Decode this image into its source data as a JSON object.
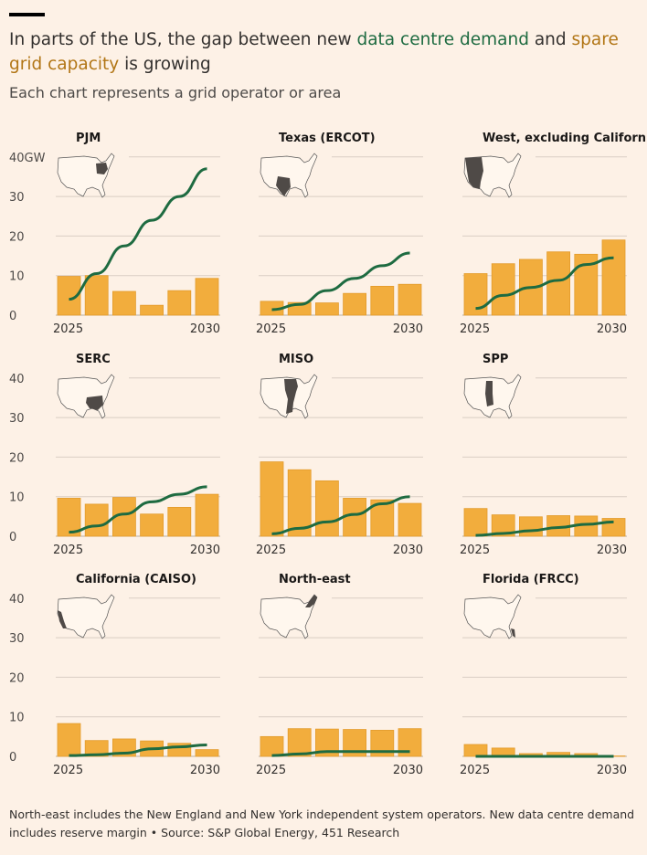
{
  "header": {
    "title_part1": "In parts of the US, the gap between new ",
    "title_demand": "data centre demand",
    "title_part2": " and ",
    "title_capacity": "spare grid capacity",
    "title_part3": " is growing",
    "subtitle": "Each chart represents a grid operator or area"
  },
  "footer": {
    "note": "North-east includes the New England and New York independent system operators. New data centre demand includes reserve margin • Source: S&P Global Energy, 451 Research"
  },
  "colors": {
    "demand": "#1e6b41",
    "capacity": "#f2ad3d",
    "capacity_text": "#b27616",
    "background": "#fdf1e6"
  },
  "chart_data": [
    {
      "type": "bar+line",
      "title": "PJM",
      "unit": "GW",
      "ylim": [
        0,
        40
      ],
      "yticks": [
        0,
        10,
        20,
        30,
        40
      ],
      "top_tick_label": "40GW",
      "x": [
        2025,
        2026,
        2027,
        2028,
        2029,
        2030
      ],
      "x_tick_labels": [
        "2025",
        "2030"
      ],
      "series": [
        {
          "name": "spare grid capacity",
          "kind": "bar",
          "values": [
            9.8,
            10,
            6,
            2.5,
            6.2,
            9.3
          ]
        },
        {
          "name": "data centre demand",
          "kind": "line",
          "values": [
            4,
            10.5,
            17.5,
            24,
            30,
            37
          ]
        }
      ]
    },
    {
      "type": "bar+line",
      "title": "Texas (ERCOT)",
      "unit": "GW",
      "ylim": [
        0,
        40
      ],
      "yticks": [
        0,
        10,
        20,
        30,
        40
      ],
      "x": [
        2025,
        2026,
        2027,
        2028,
        2029,
        2030
      ],
      "x_tick_labels": [
        "2025",
        "2030"
      ],
      "series": [
        {
          "name": "spare grid capacity",
          "kind": "bar",
          "values": [
            3.5,
            3.2,
            3.1,
            5.5,
            7.3,
            7.8
          ]
        },
        {
          "name": "data centre demand",
          "kind": "line",
          "values": [
            1.4,
            2.7,
            6.2,
            9.3,
            12.5,
            15.7
          ]
        }
      ]
    },
    {
      "type": "bar+line",
      "title": "West, excluding California",
      "unit": "GW",
      "ylim": [
        0,
        40
      ],
      "yticks": [
        0,
        10,
        20,
        30,
        40
      ],
      "x": [
        2025,
        2026,
        2027,
        2028,
        2029,
        2030
      ],
      "x_tick_labels": [
        "2025",
        "2030"
      ],
      "series": [
        {
          "name": "spare grid capacity",
          "kind": "bar",
          "values": [
            10.5,
            13,
            14.1,
            16,
            15.4,
            19
          ]
        },
        {
          "name": "data centre demand",
          "kind": "line",
          "values": [
            1.7,
            5,
            7,
            8.8,
            12.8,
            14.5
          ]
        }
      ]
    },
    {
      "type": "bar+line",
      "title": "SERC",
      "unit": "GW",
      "ylim": [
        0,
        40
      ],
      "yticks": [
        0,
        10,
        20,
        30,
        40
      ],
      "top_tick_label": "40",
      "x": [
        2025,
        2026,
        2027,
        2028,
        2029,
        2030
      ],
      "x_tick_labels": [
        "2025",
        "2030"
      ],
      "series": [
        {
          "name": "spare grid capacity",
          "kind": "bar",
          "values": [
            9.6,
            8.1,
            9.8,
            5.6,
            7.3,
            10.6
          ]
        },
        {
          "name": "data centre demand",
          "kind": "line",
          "values": [
            1,
            2.6,
            5.6,
            8.7,
            10.6,
            12.5
          ]
        }
      ]
    },
    {
      "type": "bar+line",
      "title": "MISO",
      "unit": "GW",
      "ylim": [
        0,
        40
      ],
      "yticks": [
        0,
        10,
        20,
        30,
        40
      ],
      "x": [
        2025,
        2026,
        2027,
        2028,
        2029,
        2030
      ],
      "x_tick_labels": [
        "2025",
        "2030"
      ],
      "series": [
        {
          "name": "spare grid capacity",
          "kind": "bar",
          "values": [
            18.8,
            16.8,
            14,
            9.6,
            9.2,
            8.3
          ]
        },
        {
          "name": "data centre demand",
          "kind": "line",
          "values": [
            0.6,
            2,
            3.6,
            5.5,
            8.2,
            10
          ]
        }
      ]
    },
    {
      "type": "bar+line",
      "title": "SPP",
      "unit": "GW",
      "ylim": [
        0,
        40
      ],
      "yticks": [
        0,
        10,
        20,
        30,
        40
      ],
      "x": [
        2025,
        2026,
        2027,
        2028,
        2029,
        2030
      ],
      "x_tick_labels": [
        "2025",
        "2030"
      ],
      "series": [
        {
          "name": "spare grid capacity",
          "kind": "bar",
          "values": [
            7,
            5.4,
            4.9,
            5.2,
            5.1,
            4.5
          ]
        },
        {
          "name": "data centre demand",
          "kind": "line",
          "values": [
            0.2,
            0.7,
            1.4,
            2.2,
            3,
            3.6
          ]
        }
      ]
    },
    {
      "type": "bar+line",
      "title": "California (CAISO)",
      "unit": "GW",
      "ylim": [
        0,
        40
      ],
      "yticks": [
        0,
        10,
        20,
        30,
        40
      ],
      "top_tick_label": "40",
      "x": [
        2025,
        2026,
        2027,
        2028,
        2029,
        2030
      ],
      "x_tick_labels": [
        "2025",
        "2030"
      ],
      "series": [
        {
          "name": "spare grid capacity",
          "kind": "bar",
          "values": [
            8.3,
            4,
            4.4,
            3.9,
            3.3,
            1.7
          ]
        },
        {
          "name": "data centre demand",
          "kind": "line",
          "values": [
            0.2,
            0.4,
            0.8,
            1.9,
            2.4,
            2.9
          ]
        }
      ]
    },
    {
      "type": "bar+line",
      "title": "North-east",
      "unit": "GW",
      "ylim": [
        0,
        40
      ],
      "yticks": [
        0,
        10,
        20,
        30,
        40
      ],
      "x": [
        2025,
        2026,
        2027,
        2028,
        2029,
        2030
      ],
      "x_tick_labels": [
        "2025",
        "2030"
      ],
      "series": [
        {
          "name": "spare grid capacity",
          "kind": "bar",
          "values": [
            5,
            7,
            6.9,
            6.8,
            6.6,
            7
          ]
        },
        {
          "name": "data centre demand",
          "kind": "line",
          "values": [
            0.2,
            0.6,
            1.2,
            1.2,
            1.2,
            1.2
          ]
        }
      ]
    },
    {
      "type": "bar+line",
      "title": "Florida (FRCC)",
      "unit": "GW",
      "ylim": [
        0,
        40
      ],
      "yticks": [
        0,
        10,
        20,
        30,
        40
      ],
      "x": [
        2025,
        2026,
        2027,
        2028,
        2029,
        2030
      ],
      "x_tick_labels": [
        "2025",
        "2030"
      ],
      "series": [
        {
          "name": "spare grid capacity",
          "kind": "bar",
          "values": [
            3,
            2.1,
            0.7,
            1,
            0.7,
            0.1
          ]
        },
        {
          "name": "data centre demand",
          "kind": "line",
          "values": [
            0,
            0,
            0,
            0,
            0,
            0
          ]
        }
      ]
    }
  ]
}
